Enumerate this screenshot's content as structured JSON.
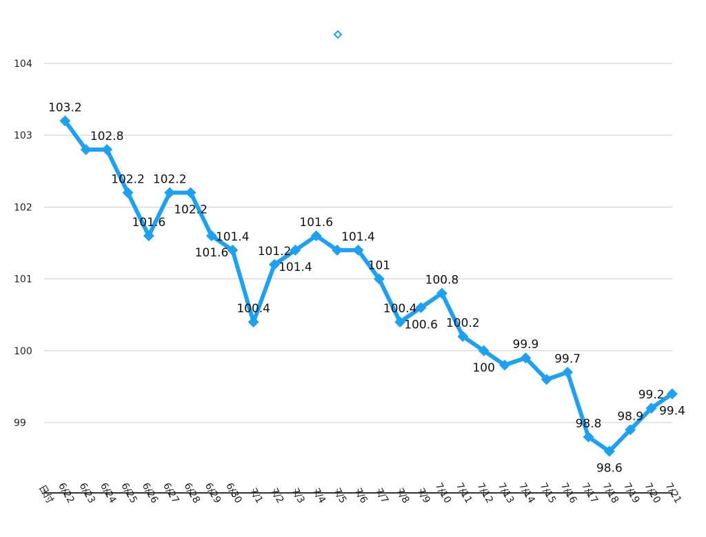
{
  "chart_data": {
    "type": "line",
    "title": "",
    "xlabel": "",
    "ylabel": "",
    "categories": [
      "日付",
      "6/22",
      "6/23",
      "6/24",
      "6/25",
      "6/26",
      "6/27",
      "6/28",
      "6/29",
      "6/30",
      "7/1",
      "7/2",
      "7/3",
      "7/4",
      "7/5",
      "7/6",
      "7/7",
      "7/8",
      "7/9",
      "7/10",
      "7/11",
      "7/12",
      "7/13",
      "7/14",
      "7/15",
      "7/16",
      "7/17",
      "7/18",
      "7/19",
      "7/20",
      "7/21"
    ],
    "series": [
      {
        "name": "",
        "color": "#1ea1f2",
        "values": [
          null,
          103.2,
          102.8,
          102.8,
          102.2,
          101.6,
          102.2,
          102.2,
          101.6,
          101.4,
          100.4,
          101.2,
          101.4,
          101.6,
          101.4,
          101.4,
          101,
          100.4,
          100.6,
          100.8,
          100.2,
          100,
          99.8,
          99.9,
          99.6,
          99.7,
          98.8,
          98.6,
          98.9,
          99.2,
          99.4
        ],
        "data_labels": [
          null,
          "103.2",
          null,
          "102.8",
          "102.2",
          "101.6",
          "102.2",
          "102.2",
          "101.6",
          "101.4",
          "100.4",
          "101.2",
          "101.4",
          "101.6",
          null,
          "101.4",
          "101",
          "100.4",
          "100.6",
          "100.8",
          "100.2",
          "100",
          null,
          "99.9",
          null,
          "99.7",
          "98.8",
          "98.6",
          "98.9",
          "99.2",
          "99.4"
        ]
      }
    ],
    "yticks": [
      99,
      100,
      101,
      102,
      103,
      104
    ],
    "ylim": [
      98,
      104.5
    ],
    "grid": true,
    "legend": "top-center"
  }
}
